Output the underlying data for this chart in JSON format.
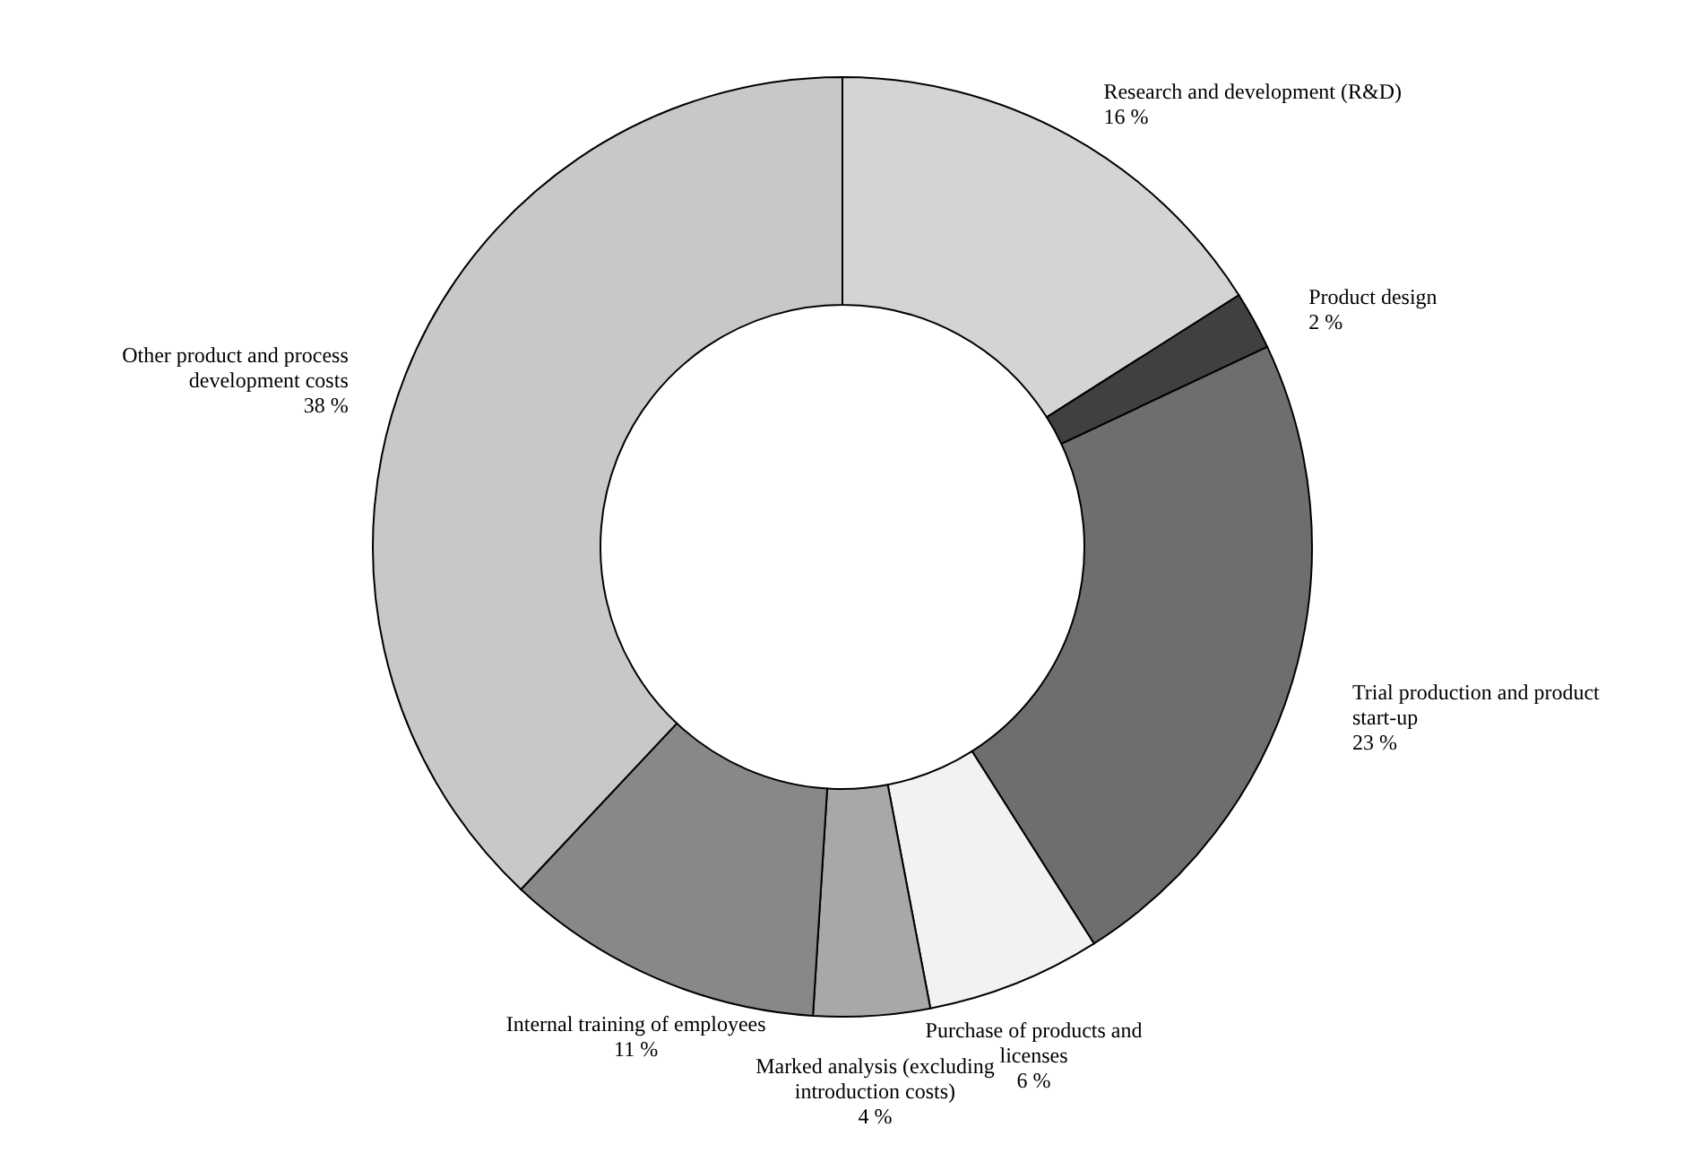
{
  "chart_data": {
    "type": "donut",
    "categories": [
      "Research and development (R&D)",
      "Product design",
      "Trial production and product start-up",
      "Purchase of products and licenses",
      "Marked analysis (excluding introduction costs)",
      "Internal training of employees",
      "Other product and process development costs"
    ],
    "values": [
      16,
      2,
      23,
      6,
      4,
      11,
      38
    ],
    "value_labels": [
      "16 %",
      "2 %",
      "23 %",
      "6 %",
      "4 %",
      "11 %",
      "38 %"
    ],
    "colors": [
      "#d4d4d4",
      "#404040",
      "#6e6e6e",
      "#f2f2f2",
      "#a8a8a8",
      "#888888",
      "#c8c8c8"
    ],
    "legend": false
  }
}
